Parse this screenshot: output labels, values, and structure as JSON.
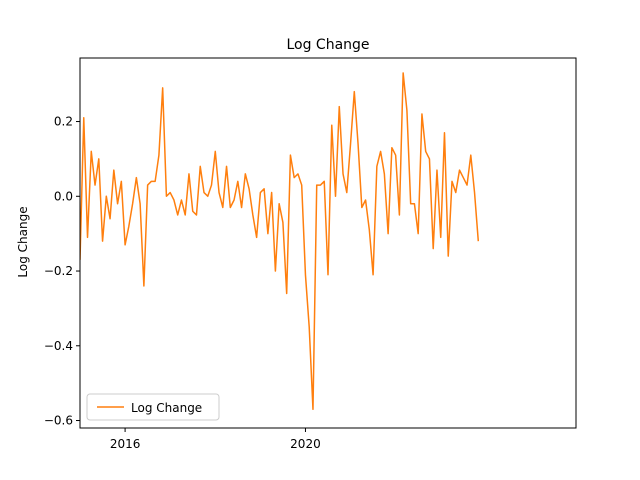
{
  "chart_data": {
    "type": "line",
    "title": "Log Change",
    "xlabel": "",
    "ylabel": "Log Change",
    "x_start": 2015.0,
    "x_step": 0.083333,
    "xlim": [
      2015.0,
      2026.0
    ],
    "ylim": [
      -0.62,
      0.37
    ],
    "x_ticks": [
      {
        "value": 2016,
        "label": "2016"
      },
      {
        "value": 2020,
        "label": "2020"
      }
    ],
    "y_ticks": [
      {
        "value": 0.2,
        "label": "0.2"
      },
      {
        "value": 0.0,
        "label": "0.0"
      },
      {
        "value": -0.2,
        "label": "−0.2"
      },
      {
        "value": -0.4,
        "label": "−0.4"
      },
      {
        "value": -0.6,
        "label": "−0.6"
      }
    ],
    "grid": false,
    "legend_position": "lower-left",
    "series": [
      {
        "name": "Log Change",
        "color": "#ff7f0e",
        "values": [
          -0.17,
          0.21,
          -0.11,
          0.12,
          0.03,
          0.1,
          -0.12,
          0.0,
          -0.06,
          0.07,
          -0.02,
          0.04,
          -0.13,
          -0.08,
          -0.02,
          0.05,
          -0.02,
          -0.24,
          0.03,
          0.04,
          0.04,
          0.11,
          0.29,
          0.0,
          0.01,
          -0.01,
          -0.05,
          -0.01,
          -0.05,
          0.06,
          -0.04,
          -0.05,
          0.08,
          0.01,
          0.0,
          0.03,
          0.12,
          0.01,
          -0.03,
          0.08,
          -0.03,
          -0.01,
          0.04,
          -0.03,
          0.06,
          0.02,
          -0.05,
          -0.11,
          0.01,
          0.02,
          -0.1,
          0.01,
          -0.2,
          -0.02,
          -0.07,
          -0.26,
          0.11,
          0.05,
          0.06,
          0.03,
          -0.21,
          -0.35,
          -0.57,
          0.03,
          0.03,
          0.04,
          -0.21,
          0.19,
          0.0,
          0.24,
          0.06,
          0.01,
          0.14,
          0.28,
          0.14,
          -0.03,
          -0.01,
          -0.09,
          -0.21,
          0.08,
          0.12,
          0.06,
          -0.1,
          0.13,
          0.11,
          -0.05,
          0.33,
          0.23,
          -0.02,
          -0.02,
          -0.1,
          0.22,
          0.12,
          0.1,
          -0.14,
          0.07,
          -0.11,
          0.17,
          -0.16,
          0.04,
          0.01,
          0.07,
          0.05,
          0.03,
          0.11,
          0.01,
          -0.12
        ]
      }
    ]
  }
}
